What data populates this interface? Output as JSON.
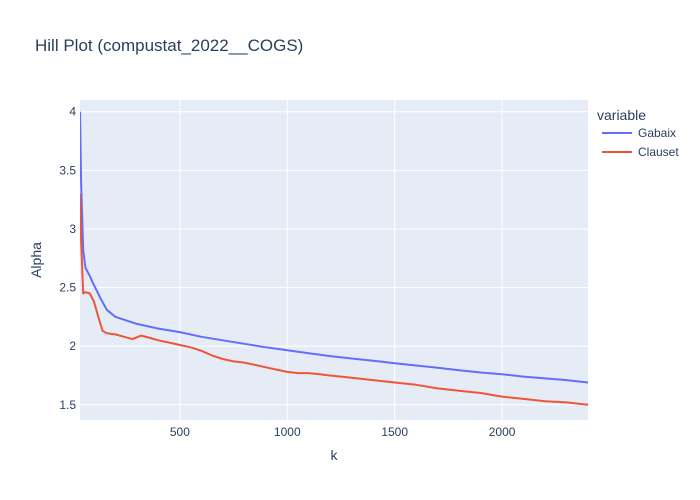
{
  "chart_data": {
    "type": "line",
    "title": "Hill Plot (compustat_2022__COGS)",
    "xlabel": "k",
    "ylabel": "Alpha",
    "xlim": [
      35,
      2400
    ],
    "ylim": [
      1.37,
      4.1
    ],
    "xticks": [
      500,
      1000,
      1500,
      2000
    ],
    "yticks": [
      1.5,
      2,
      2.5,
      3,
      3.5,
      4
    ],
    "ytick_labels": [
      "1.5",
      "2",
      "2.5",
      "3",
      "3.5",
      "4"
    ],
    "grid": true,
    "legend": {
      "title": "variable",
      "placement": "top-right-outside"
    },
    "colors": {
      "plot_bg": "#e5ecf6",
      "grid": "#ffffff",
      "text": "#2a3f5f"
    },
    "series": [
      {
        "name": "Gabaix",
        "color": "#636efa",
        "x": [
          35,
          40,
          50,
          60,
          80,
          100,
          130,
          160,
          200,
          250,
          300,
          400,
          500,
          600,
          700,
          800,
          900,
          1000,
          1100,
          1200,
          1300,
          1400,
          1500,
          1600,
          1700,
          1800,
          1900,
          2000,
          2100,
          2200,
          2300,
          2400
        ],
        "y": [
          4.0,
          3.4,
          2.82,
          2.67,
          2.6,
          2.52,
          2.41,
          2.31,
          2.25,
          2.22,
          2.19,
          2.15,
          2.12,
          2.08,
          2.05,
          2.02,
          1.99,
          1.965,
          1.94,
          1.915,
          1.895,
          1.875,
          1.855,
          1.835,
          1.815,
          1.795,
          1.775,
          1.76,
          1.74,
          1.725,
          1.71,
          1.69
        ]
      },
      {
        "name": "Clauset",
        "color": "#ef553b",
        "x": [
          35,
          40,
          50,
          60,
          80,
          100,
          120,
          140,
          160,
          200,
          240,
          280,
          320,
          360,
          400,
          450,
          500,
          550,
          600,
          650,
          700,
          750,
          800,
          850,
          900,
          950,
          1000,
          1050,
          1100,
          1150,
          1200,
          1300,
          1400,
          1500,
          1600,
          1700,
          1800,
          1900,
          2000,
          2100,
          2200,
          2300,
          2400
        ],
        "y": [
          3.3,
          2.9,
          2.45,
          2.46,
          2.45,
          2.38,
          2.25,
          2.13,
          2.11,
          2.1,
          2.08,
          2.06,
          2.09,
          2.07,
          2.05,
          2.03,
          2.01,
          1.99,
          1.96,
          1.92,
          1.89,
          1.87,
          1.86,
          1.84,
          1.82,
          1.8,
          1.78,
          1.77,
          1.77,
          1.76,
          1.75,
          1.73,
          1.71,
          1.69,
          1.67,
          1.64,
          1.62,
          1.6,
          1.57,
          1.55,
          1.53,
          1.52,
          1.5
        ]
      }
    ]
  }
}
